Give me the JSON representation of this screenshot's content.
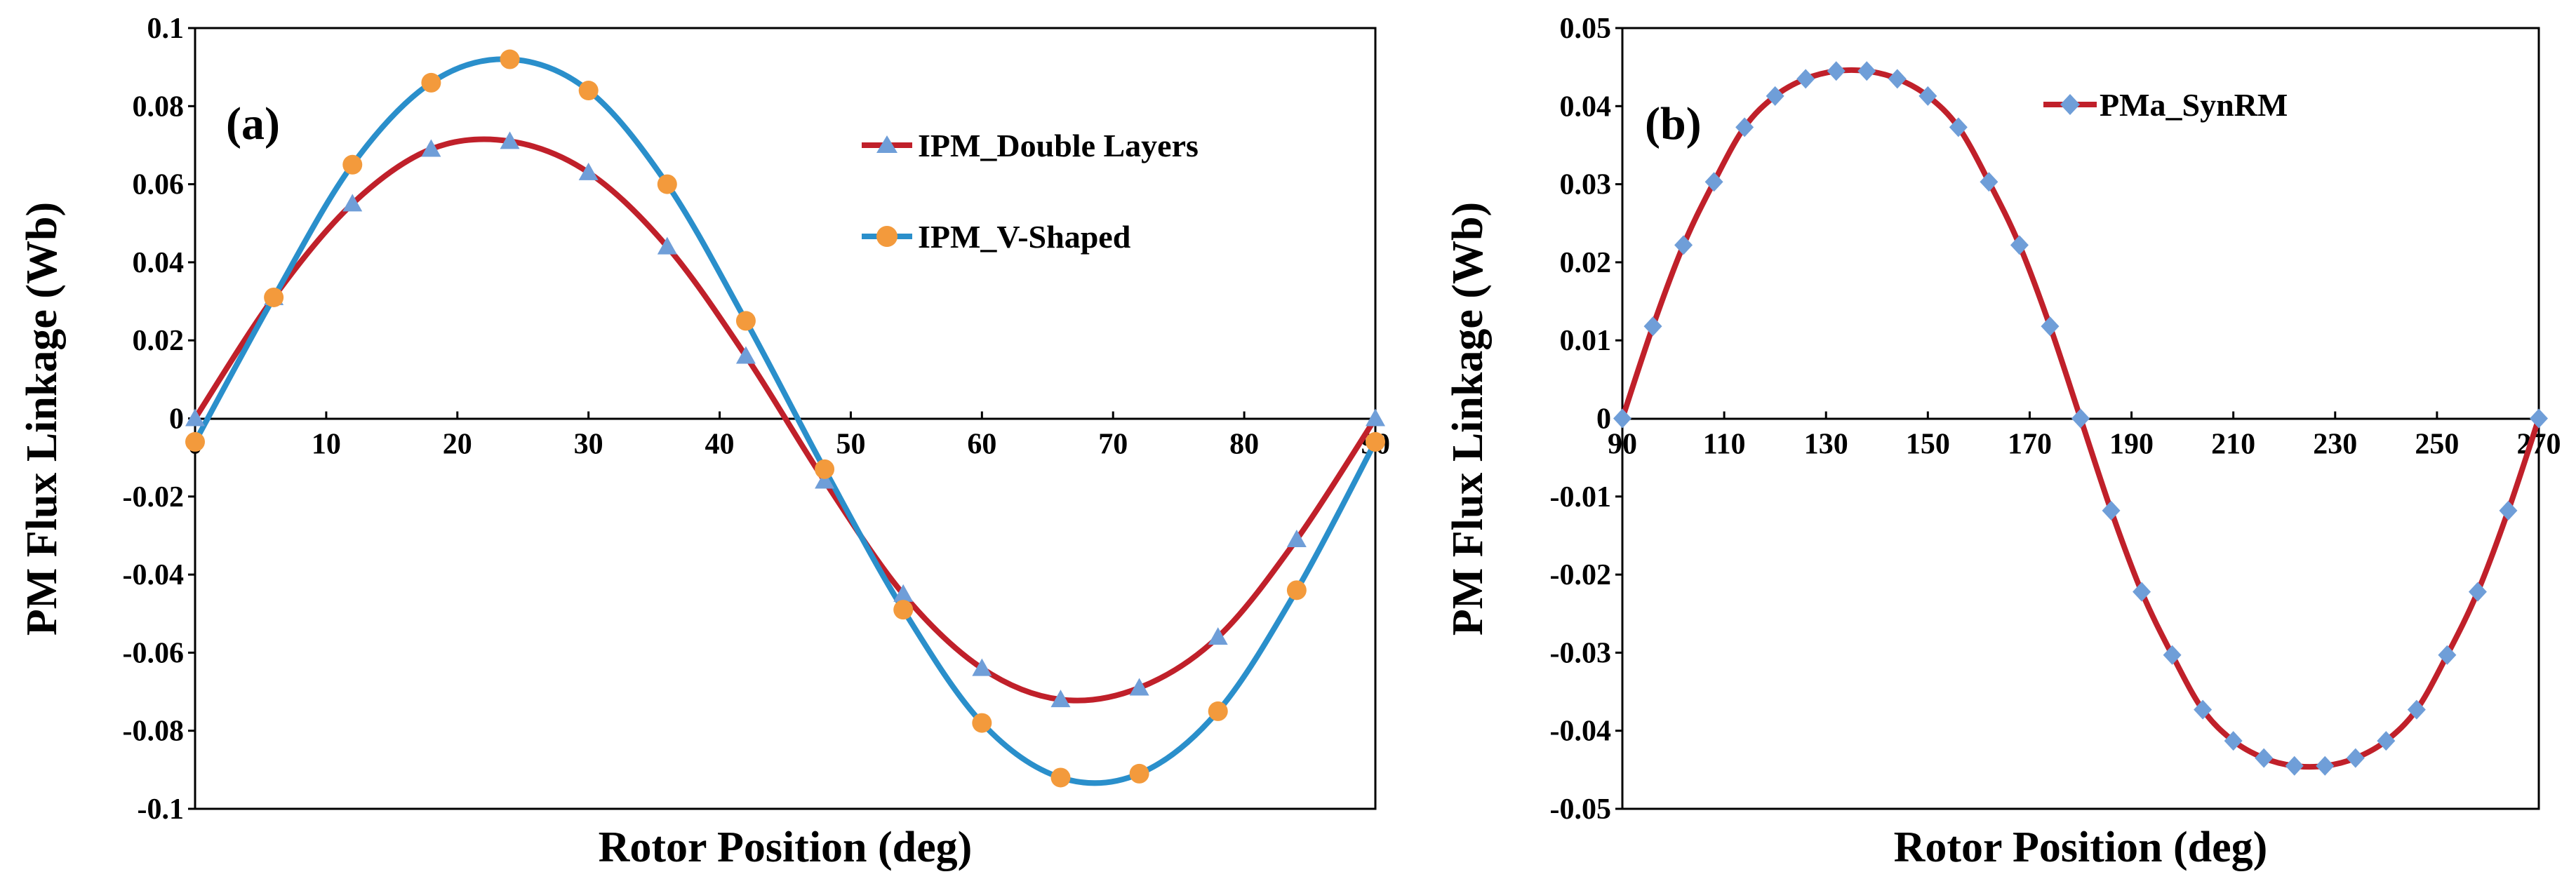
{
  "chart_data": [
    {
      "panel_label": "(a)",
      "type": "line",
      "xlabel": "Rotor Position (deg)",
      "ylabel": "PM Flux Linkage (Wb)",
      "xlim": [
        0,
        90
      ],
      "ylim": [
        -0.1,
        0.1
      ],
      "x_ticks": [
        0,
        10,
        20,
        30,
        40,
        50,
        60,
        70,
        80,
        90
      ],
      "y_ticks": [
        0.1,
        0.08,
        0.06,
        0.04,
        0.02,
        0,
        -0.02,
        -0.04,
        -0.06,
        -0.08,
        -0.1
      ],
      "legend_position": "top-right",
      "series": [
        {
          "name": "IPM_Double Layers",
          "line_color": "#C0202A",
          "marker": "triangle",
          "marker_color": "#6F9ED8",
          "x": [
            0,
            6,
            12,
            18,
            24,
            30,
            36,
            42,
            48,
            54,
            60,
            66,
            72,
            78,
            84,
            90
          ],
          "y": [
            0,
            0.031,
            0.055,
            0.069,
            0.071,
            0.063,
            0.044,
            0.016,
            -0.016,
            -0.045,
            -0.064,
            -0.072,
            -0.069,
            -0.056,
            -0.031,
            0
          ]
        },
        {
          "name": "IPM_V-Shaped",
          "line_color": "#2A8FCB",
          "marker": "circle",
          "marker_color": "#F39A3C",
          "x": [
            0,
            6,
            12,
            18,
            24,
            30,
            36,
            42,
            48,
            54,
            60,
            66,
            72,
            78,
            84,
            90
          ],
          "y": [
            -0.006,
            0.031,
            0.065,
            0.086,
            0.092,
            0.084,
            0.06,
            0.025,
            -0.013,
            -0.049,
            -0.078,
            -0.092,
            -0.091,
            -0.075,
            -0.044,
            -0.006
          ]
        }
      ]
    },
    {
      "panel_label": "(b)",
      "type": "line",
      "xlabel": "Rotor Position (deg)",
      "ylabel": "PM Flux Linkage (Wb)",
      "xlim": [
        90,
        270
      ],
      "ylim": [
        -0.05,
        0.05
      ],
      "x_ticks": [
        90,
        110,
        130,
        150,
        170,
        190,
        210,
        230,
        250,
        270
      ],
      "y_ticks": [
        0.05,
        0.04,
        0.03,
        0.02,
        0.01,
        0,
        -0.01,
        -0.02,
        -0.03,
        -0.04,
        -0.05
      ],
      "legend_position": "top-right",
      "series": [
        {
          "name": "PMa_SynRM",
          "line_color": "#C0202A",
          "marker": "diamond",
          "marker_color": "#6F9ED8",
          "x": [
            90,
            96,
            102,
            108,
            114,
            120,
            126,
            132,
            138,
            144,
            150,
            156,
            162,
            168,
            174,
            180,
            186,
            192,
            198,
            204,
            210,
            216,
            222,
            228,
            234,
            240,
            246,
            252,
            258,
            264,
            270
          ],
          "y": [
            0,
            0.0118,
            0.0222,
            0.0303,
            0.0373,
            0.0413,
            0.0435,
            0.0445,
            0.0445,
            0.0435,
            0.0413,
            0.0373,
            0.0303,
            0.0222,
            0.0118,
            0,
            -0.0118,
            -0.0222,
            -0.0303,
            -0.0373,
            -0.0413,
            -0.0435,
            -0.0445,
            -0.0445,
            -0.0435,
            -0.0413,
            -0.0373,
            -0.0303,
            -0.0222,
            -0.0118,
            0
          ]
        }
      ]
    }
  ]
}
